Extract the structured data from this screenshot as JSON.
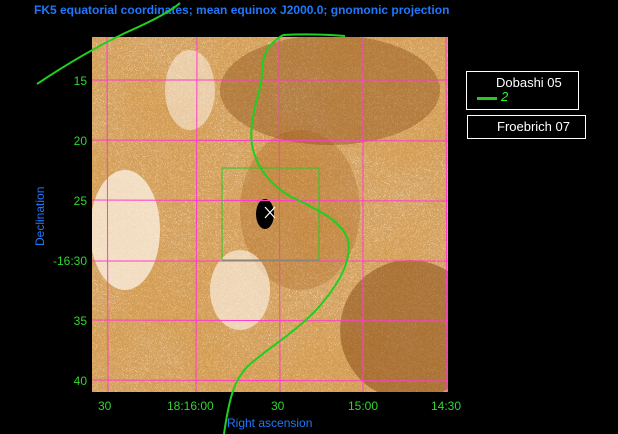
{
  "map": {
    "title": "FK5 equatorial coordinates; mean equinox J2000.0; gnomonic projection",
    "xlabel": "Right ascension",
    "ylabel": "Declination",
    "x_ticks": [
      "30",
      "18:16:00",
      "30",
      "15:00",
      "14:30"
    ],
    "y_ticks": [
      "15",
      "20",
      "25",
      "-16:30",
      "35",
      "40"
    ],
    "colors": {
      "background": "#000000",
      "grid": "#ff3ccf",
      "contour": "#1fcf1f",
      "labels": "#1e78ff",
      "ticks": "#2fd62f",
      "image_light": "#fff3e6",
      "image_dark": "#7a3c08"
    }
  },
  "legend": [
    {
      "name": "Dobashi 05",
      "value": "2",
      "line_color": "#22cc22"
    },
    {
      "name": "Froebrich 07"
    }
  ]
}
